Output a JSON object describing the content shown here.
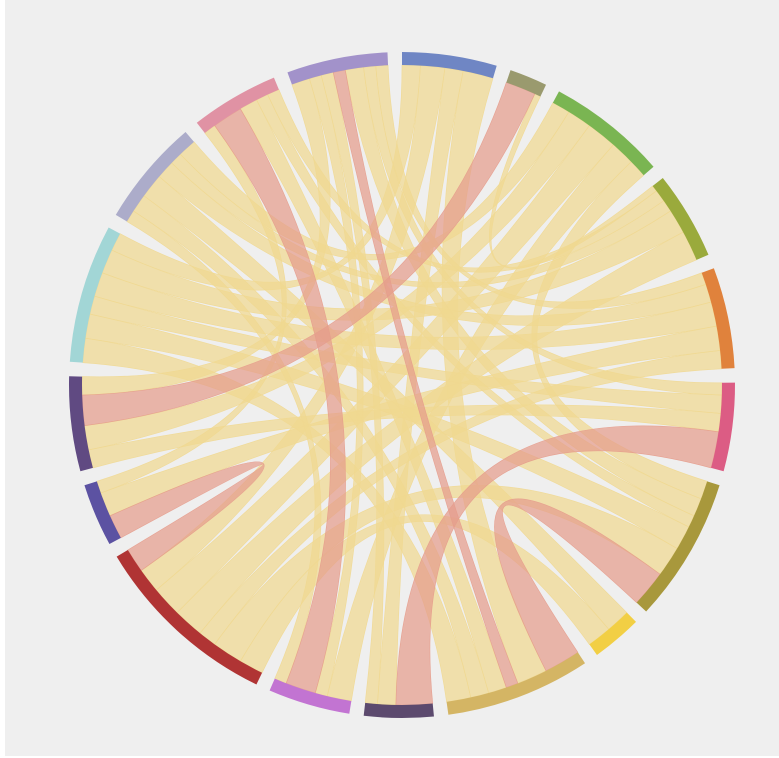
{
  "chart_data": {
    "type": "chord",
    "groups": [
      {
        "color": "#6f86c4"
      },
      {
        "color": "#9a9a6e"
      },
      {
        "color": "#7ab552"
      },
      {
        "color": "#9aaa3c"
      },
      {
        "color": "#e0823c"
      },
      {
        "color": "#dc5c84"
      },
      {
        "color": "#a8983c"
      },
      {
        "color": "#f2cf44"
      },
      {
        "color": "#d4b564"
      },
      {
        "color": "#5c4a6e"
      },
      {
        "color": "#c274d2"
      },
      {
        "color": "#b03434"
      },
      {
        "color": "#5c52a2"
      },
      {
        "color": "#604a82"
      },
      {
        "color": "#a2d6d6"
      },
      {
        "color": "#acacca"
      },
      {
        "color": "#e092a4"
      },
      {
        "color": "#a292ca"
      }
    ],
    "chords": [
      {
        "source": 0,
        "target": 8,
        "value": 5,
        "color": "#f0d890"
      },
      {
        "source": 0,
        "target": 9,
        "value": 3,
        "color": "#f0d890"
      },
      {
        "source": 0,
        "target": 11,
        "value": 4,
        "color": "#f0d890"
      },
      {
        "source": 0,
        "target": 14,
        "value": 3,
        "color": "#f0d890"
      },
      {
        "source": 1,
        "target": 13,
        "value": 5,
        "color": "#e59c8c"
      },
      {
        "source": 1,
        "target": 3,
        "value": 1,
        "color": "#f0d890"
      },
      {
        "source": 2,
        "target": 11,
        "value": 5,
        "color": "#f0d890"
      },
      {
        "source": 2,
        "target": 13,
        "value": 4,
        "color": "#f0d890"
      },
      {
        "source": 2,
        "target": 10,
        "value": 4,
        "color": "#f0d890"
      },
      {
        "source": 2,
        "target": 15,
        "value": 3,
        "color": "#f0d890"
      },
      {
        "source": 2,
        "target": 6,
        "value": 3,
        "color": "#f0d890"
      },
      {
        "source": 3,
        "target": 11,
        "value": 5,
        "color": "#f0d890"
      },
      {
        "source": 3,
        "target": 14,
        "value": 4,
        "color": "#f0d890"
      },
      {
        "source": 3,
        "target": 15,
        "value": 2,
        "color": "#f0d890"
      },
      {
        "source": 3,
        "target": 16,
        "value": 2,
        "color": "#f0d890"
      },
      {
        "source": 4,
        "target": 14,
        "value": 4,
        "color": "#f0d890"
      },
      {
        "source": 4,
        "target": 12,
        "value": 4,
        "color": "#f0d890"
      },
      {
        "source": 4,
        "target": 15,
        "value": 3,
        "color": "#f0d890"
      },
      {
        "source": 4,
        "target": 11,
        "value": 3,
        "color": "#f0d890"
      },
      {
        "source": 4,
        "target": 17,
        "value": 2,
        "color": "#f0d890"
      },
      {
        "source": 5,
        "target": 9,
        "value": 6,
        "color": "#e59c8c"
      },
      {
        "source": 5,
        "target": 13,
        "value": 3,
        "color": "#f0d890"
      },
      {
        "source": 5,
        "target": 14,
        "value": 3,
        "color": "#f0d890"
      },
      {
        "source": 5,
        "target": 17,
        "value": 2,
        "color": "#f0d890"
      },
      {
        "source": 6,
        "target": 8,
        "value": 6,
        "color": "#e59c8c"
      },
      {
        "source": 6,
        "target": 11,
        "value": 5,
        "color": "#f0d890"
      },
      {
        "source": 6,
        "target": 14,
        "value": 4,
        "color": "#f0d890"
      },
      {
        "source": 6,
        "target": 16,
        "value": 2,
        "color": "#f0d890"
      },
      {
        "source": 6,
        "target": 17,
        "value": 3,
        "color": "#f0d890"
      },
      {
        "source": 7,
        "target": 11,
        "value": 4,
        "color": "#f0d890"
      },
      {
        "source": 7,
        "target": 15,
        "value": 4,
        "color": "#f0d890"
      },
      {
        "source": 8,
        "target": 17,
        "value": 2,
        "color": "#e59c8c"
      },
      {
        "source": 8,
        "target": 14,
        "value": 4,
        "color": "#f0d890"
      },
      {
        "source": 8,
        "target": 15,
        "value": 3,
        "color": "#f0d890"
      },
      {
        "source": 8,
        "target": 16,
        "value": 3,
        "color": "#f0d890"
      },
      {
        "source": 9,
        "target": 17,
        "value": 2,
        "color": "#f0d890"
      },
      {
        "source": 10,
        "target": 16,
        "value": 5,
        "color": "#e59c8c"
      },
      {
        "source": 10,
        "target": 15,
        "value": 2,
        "color": "#f0d890"
      },
      {
        "source": 10,
        "target": 17,
        "value": 2,
        "color": "#f0d890"
      },
      {
        "source": 11,
        "target": 12,
        "value": 4,
        "color": "#e59c8c"
      },
      {
        "source": 12,
        "target": 16,
        "value": 2,
        "color": "#f0d890"
      },
      {
        "source": 13,
        "target": 17,
        "value": 3,
        "color": "#f0d890"
      }
    ]
  }
}
